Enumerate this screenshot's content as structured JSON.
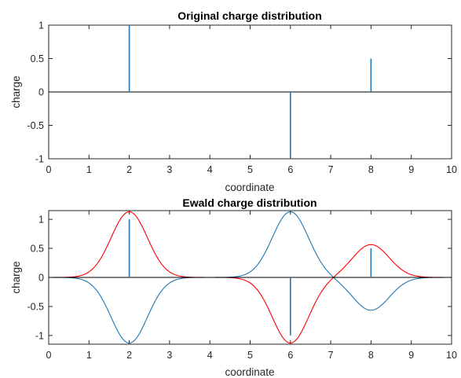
{
  "chart_data": [
    {
      "type": "stem",
      "title": "Original charge distribution",
      "xlabel": "coordinate",
      "ylabel": "charge",
      "xlim": [
        0,
        10
      ],
      "ylim": [
        -1,
        1
      ],
      "xticks": [
        "0",
        "1",
        "2",
        "3",
        "4",
        "5",
        "6",
        "7",
        "8",
        "9",
        "10"
      ],
      "yticks": [
        "-1",
        "-0.5",
        "0",
        "0.5",
        "1"
      ],
      "grid": false,
      "baseline": 0,
      "series": [
        {
          "color": "#1f77b4",
          "x": [
            2,
            6,
            8
          ],
          "values": [
            1,
            -1,
            0.5
          ]
        }
      ]
    },
    {
      "type": "line",
      "title": "Ewald charge distribution",
      "xlabel": "coordinate",
      "ylabel": "charge",
      "xlim": [
        0,
        10
      ],
      "ylim": [
        -1.15,
        1.15
      ],
      "xticks": [
        "0",
        "1",
        "2",
        "3",
        "4",
        "5",
        "6",
        "7",
        "8",
        "9",
        "10"
      ],
      "yticks": [
        "-1",
        "-0.5",
        "0",
        "0.5",
        "1"
      ],
      "grid": false,
      "baseline": 0,
      "gaussian_width": 0.45,
      "stems": {
        "color": "#1f77b4",
        "x": [
          2,
          6,
          8
        ],
        "values": [
          1,
          -1,
          0.5
        ]
      },
      "series": [
        {
          "color": "#ff0000",
          "centers": [
            2,
            6,
            8
          ],
          "amplitudes": [
            1.13,
            -1.13,
            0.565
          ]
        },
        {
          "color": "#1f77b4",
          "centers": [
            2,
            6,
            8
          ],
          "amplitudes": [
            -1.13,
            1.13,
            -0.565
          ]
        }
      ]
    }
  ]
}
